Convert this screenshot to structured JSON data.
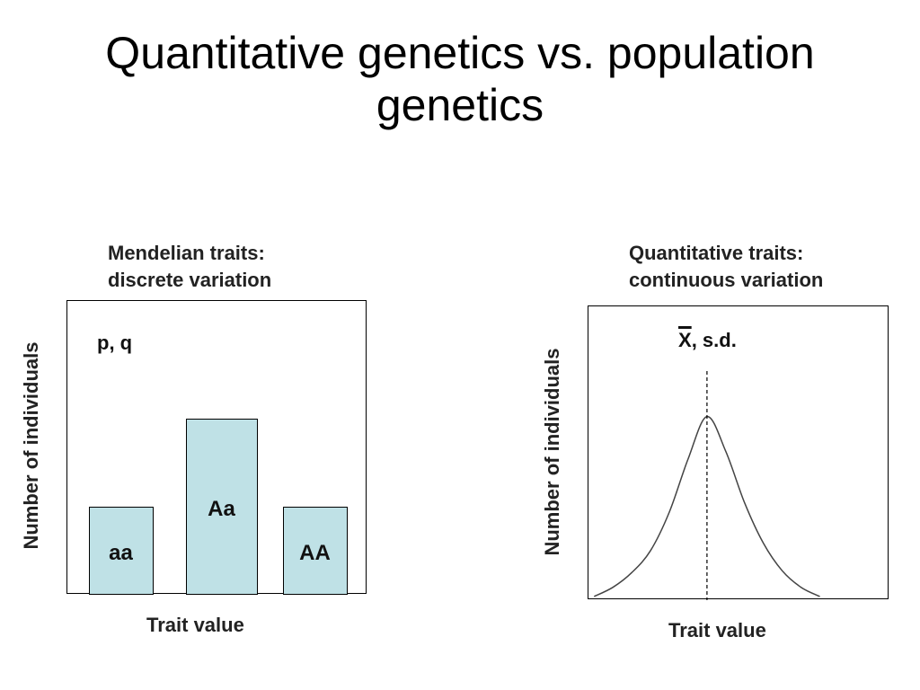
{
  "slide": {
    "title_line1": "Quantitative genetics vs. population",
    "title_line2": "genetics"
  },
  "chart_data": [
    {
      "type": "bar",
      "title_line1": "Mendelian traits:",
      "title_line2": "discrete variation",
      "xlabel": "Trait value",
      "ylabel": "Number of individuals",
      "annotation": "p, q",
      "categories": [
        "aa",
        "Aa",
        "AA"
      ],
      "values": [
        1,
        2,
        1
      ],
      "ylim": [
        0,
        3.35
      ]
    },
    {
      "type": "line",
      "title_line1": "Quantitative traits:",
      "title_line2": "continuous variation",
      "xlabel": "Trait value",
      "ylabel": "Number of individuals",
      "annotation_mean": "X",
      "annotation_rest": ",  s.d.",
      "mean_x": 0,
      "x": [
        -3,
        -2.5,
        -2,
        -1.5,
        -1,
        -0.5,
        0,
        0.5,
        1,
        1.5,
        2,
        2.5,
        3
      ],
      "y": [
        0.02,
        0.07,
        0.15,
        0.27,
        0.48,
        0.77,
        1.0,
        0.81,
        0.53,
        0.31,
        0.16,
        0.07,
        0.02
      ],
      "ylim": [
        0,
        1.6
      ],
      "xlim": [
        -3.15,
        4.85
      ]
    }
  ]
}
